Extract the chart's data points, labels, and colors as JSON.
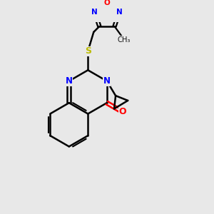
{
  "background_color": "#e8e8e8",
  "bond_color": "#000000",
  "N_color": "#0000ff",
  "O_color": "#ff0000",
  "S_color": "#bbbb00",
  "figsize": [
    3.0,
    3.0
  ],
  "dpi": 100,
  "xlim": [
    0,
    10
  ],
  "ylim": [
    0,
    10
  ]
}
